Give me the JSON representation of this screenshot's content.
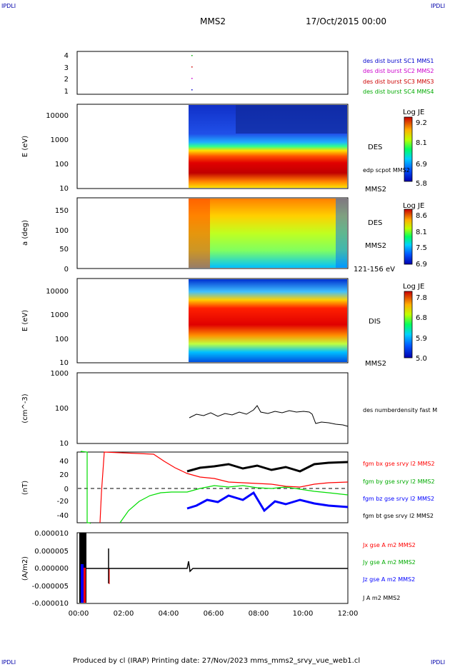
{
  "header": {
    "corner_tl": "IPDLI",
    "corner_tr": "IPDLI",
    "corner_bl": "IPDLI",
    "corner_br": "IPDLI",
    "spacecraft": "MMS2",
    "date": "17/Oct/2015 00:00"
  },
  "footer": {
    "text": "Produced by cl (IRAP)   Printing date: 27/Nov/2023   mms_mms2_srvy_vue_web1.cl"
  },
  "colors": {
    "mms1": "#0000cc",
    "mms2": "#cc00cc",
    "mms3": "#cc0000",
    "mms4": "#00aa00",
    "bx": "#ff0000",
    "by": "#00dd00",
    "bz": "#0000ff",
    "bt": "#000000"
  },
  "chart_data": [
    {
      "type": "scatter",
      "id": "burst",
      "yticks": [
        "4",
        "3",
        "2",
        "1"
      ],
      "legend": [
        "des dist burst SC1 MMS1",
        "des dist burst SC2 MMS2",
        "des dist burst SC3 MMS3",
        "des dist burst SC4 MMS4"
      ]
    },
    {
      "type": "heatmap",
      "id": "des-energy",
      "ylabel": "E (eV)",
      "yticks": [
        "10000",
        "1000",
        "100",
        "10"
      ],
      "side_label": "DES",
      "side_sub": "edp scpot MMS2",
      "sc_label": "MMS2",
      "colorbar_title": "Log JE",
      "colorbar_ticks": [
        "9.2",
        "8.1",
        "6.9",
        "5.8"
      ]
    },
    {
      "type": "heatmap",
      "id": "des-pitch",
      "ylabel": "a (deg)",
      "yticks": [
        "150",
        "100",
        "50",
        "0"
      ],
      "side_label": "DES",
      "sc_label": "MMS2",
      "energy_label": "121-156 eV",
      "colorbar_title": "Log JE",
      "colorbar_ticks": [
        "8.6",
        "8.1",
        "7.5",
        "6.9"
      ]
    },
    {
      "type": "heatmap",
      "id": "dis-energy",
      "ylabel": "E (eV)",
      "yticks": [
        "10000",
        "1000",
        "100",
        "10"
      ],
      "side_label": "DIS",
      "sc_label": "MMS2",
      "colorbar_title": "Log JE",
      "colorbar_ticks": [
        "7.8",
        "6.8",
        "5.9",
        "5.0"
      ]
    },
    {
      "type": "line",
      "id": "density",
      "ylabel": "(cm^-3)",
      "yticks": [
        "1000",
        "100",
        "10"
      ],
      "legend": [
        "des numberdensity fast M"
      ]
    },
    {
      "type": "line",
      "id": "fgm",
      "ylabel": "(nT)",
      "yticks": [
        "40",
        "20",
        "0",
        "-20",
        "-40"
      ],
      "legend": [
        "fgm bx gse srvy l2 MMS2",
        "fgm by gse srvy l2 MMS2",
        "fgm bz gse srvy l2 MMS2",
        "fgm bt gse srvy l2 MMS2"
      ]
    },
    {
      "type": "line",
      "id": "current",
      "ylabel": "(A/m2)",
      "yticks": [
        "0.000010",
        "0.000005",
        "0.000000",
        "-0.000005",
        "-0.000010"
      ],
      "legend": [
        "Jx gse A m2 MMS2",
        "Jy gse A m2 MMS2",
        "Jz gse A m2 MMS2",
        "J A m2 MMS2"
      ],
      "xticks": [
        "00:00",
        "02:00",
        "04:00",
        "06:00",
        "08:00",
        "10:00",
        "12:00"
      ]
    }
  ]
}
